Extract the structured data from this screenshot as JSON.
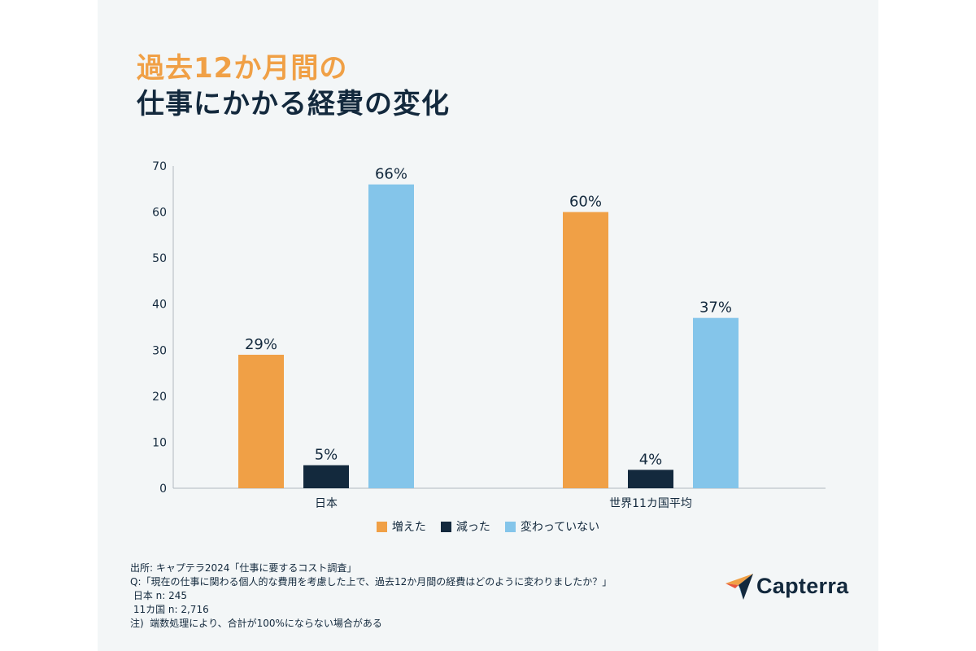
{
  "title_line1": "過去12か月間の",
  "title_line2": "仕事にかかる経費の変化",
  "colors": {
    "orange": "#f0a046",
    "navy": "#13293d",
    "lightblue": "#84c5ea",
    "axis": "#b0b8bf",
    "text": "#13293d"
  },
  "chart_data": {
    "type": "bar",
    "categories": [
      "日本",
      "世界11カ国平均"
    ],
    "series": [
      {
        "name": "増えた",
        "values": [
          29,
          60
        ],
        "labels": [
          "29%",
          "60%"
        ],
        "color": "#f0a046"
      },
      {
        "name": "減った",
        "values": [
          5,
          4
        ],
        "labels": [
          "5%",
          "4%"
        ],
        "color": "#13293d"
      },
      {
        "name": "変わっていない",
        "values": [
          66,
          37
        ],
        "labels": [
          "66%",
          "37%"
        ],
        "color": "#84c5ea"
      }
    ],
    "ylim": [
      0,
      70
    ],
    "yticks": [
      0,
      10,
      20,
      30,
      40,
      50,
      60,
      70
    ],
    "grid": false,
    "legend_position": "bottom"
  },
  "footnotes": [
    "出所: キャプテラ2024「仕事に要するコスト調査」",
    "Q:「現在の仕事に関わる個人的な費用を考慮した上で、過去12か月間の経費はどのように変わりましたか？」",
    " 日本 n: 245",
    " 11カ国 n: 2,716",
    "注)  端数処理により、合計が100%にならない場合がある"
  ],
  "logo": {
    "text": "Capterra",
    "icon": "capterra-arrow-icon"
  }
}
